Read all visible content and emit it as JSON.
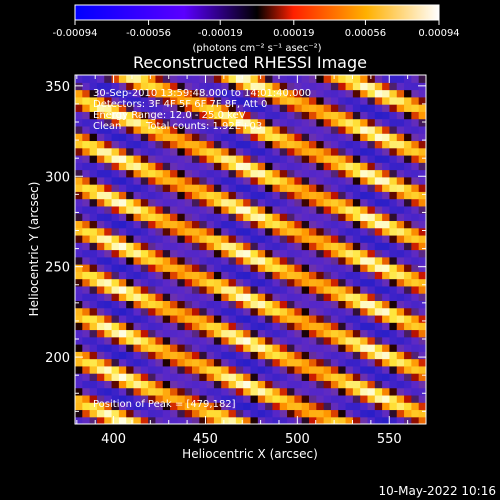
{
  "chart_data": {
    "type": "heatmap",
    "title": "Reconstructed RHESSI Image",
    "xlabel": "Heliocentric X (arcsec)",
    "ylabel": "Heliocentric Y (arcsec)",
    "xlim": [
      379,
      570
    ],
    "ylim": [
      163,
      356
    ],
    "x_ticks": [
      400,
      450,
      500,
      550
    ],
    "y_ticks": [
      200,
      250,
      300,
      350
    ],
    "colorbar": {
      "ticks": [
        "-0.00094",
        "-0.00056",
        "-0.00019",
        "0.00019",
        "0.00056",
        "0.00094"
      ],
      "range": [
        -0.00094,
        0.00094
      ],
      "unit_label": "(photons cm⁻² s⁻¹ asec⁻²)",
      "colors": [
        "#0000ff",
        "#5a00ff",
        "#000000",
        "#ff2000",
        "#ffb000",
        "#ffffff"
      ]
    },
    "annotations": [
      "30-Sep-2010 13:59:48.000 to 14:01:40.000",
      "Detectors: 3F 4F 5F 6F 7F 8F, Att 0",
      "Energy Range: 12.0 - 25.0 keV",
      "Clean",
      "Total counts: 1.92E+03",
      "Position of Peak = [479,182]"
    ],
    "stripes": {
      "spacing_arcsec": 24,
      "slope": -0.42,
      "peak_position": [
        479,
        182
      ]
    }
  },
  "footer": {
    "timestamp": "10-May-2022 10:16"
  },
  "colors": {
    "background": "#000000",
    "axes": "#ffffff",
    "minimum": "#3020d0",
    "maximum": "#ffffff"
  }
}
